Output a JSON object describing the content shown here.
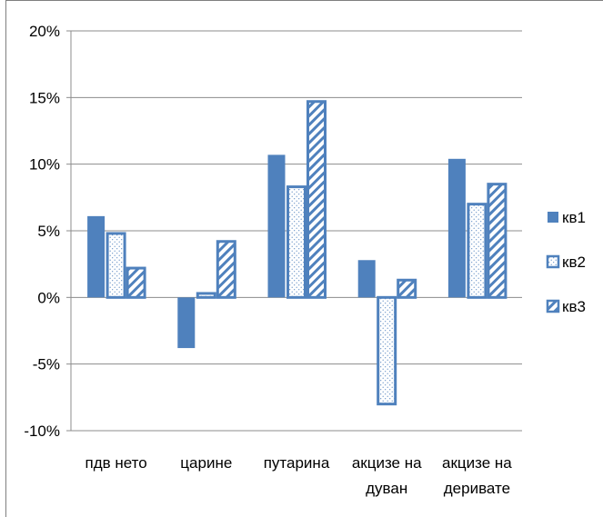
{
  "chart_data": {
    "type": "bar",
    "title": "",
    "xlabel": "",
    "ylabel": "",
    "ylim": [
      -0.1,
      0.2
    ],
    "yticks": [
      -0.1,
      -0.05,
      0,
      0.05,
      0.1,
      0.15,
      0.2
    ],
    "ytick_labels": [
      "-10%",
      "-5%",
      "0%",
      "5%",
      "10%",
      "15%",
      "20%"
    ],
    "grid": true,
    "legend_position": "right",
    "categories": [
      [
        "пдв нето"
      ],
      [
        "царине"
      ],
      [
        "путарина"
      ],
      [
        "акцизе на",
        "дуван"
      ],
      [
        "акцизе на",
        "деривате"
      ]
    ],
    "series": [
      {
        "name": "кв1",
        "style": "solid",
        "color": "#4f81bd",
        "values": [
          0.061,
          -0.038,
          0.107,
          0.028,
          0.104
        ]
      },
      {
        "name": "кв2",
        "style": "dotted",
        "color": "#4f81bd",
        "values": [
          0.048,
          0.003,
          0.083,
          -0.08,
          0.07
        ]
      },
      {
        "name": "кв3",
        "style": "hatched",
        "color": "#4f81bd",
        "values": [
          0.022,
          0.042,
          0.147,
          0.013,
          0.085
        ]
      }
    ]
  }
}
